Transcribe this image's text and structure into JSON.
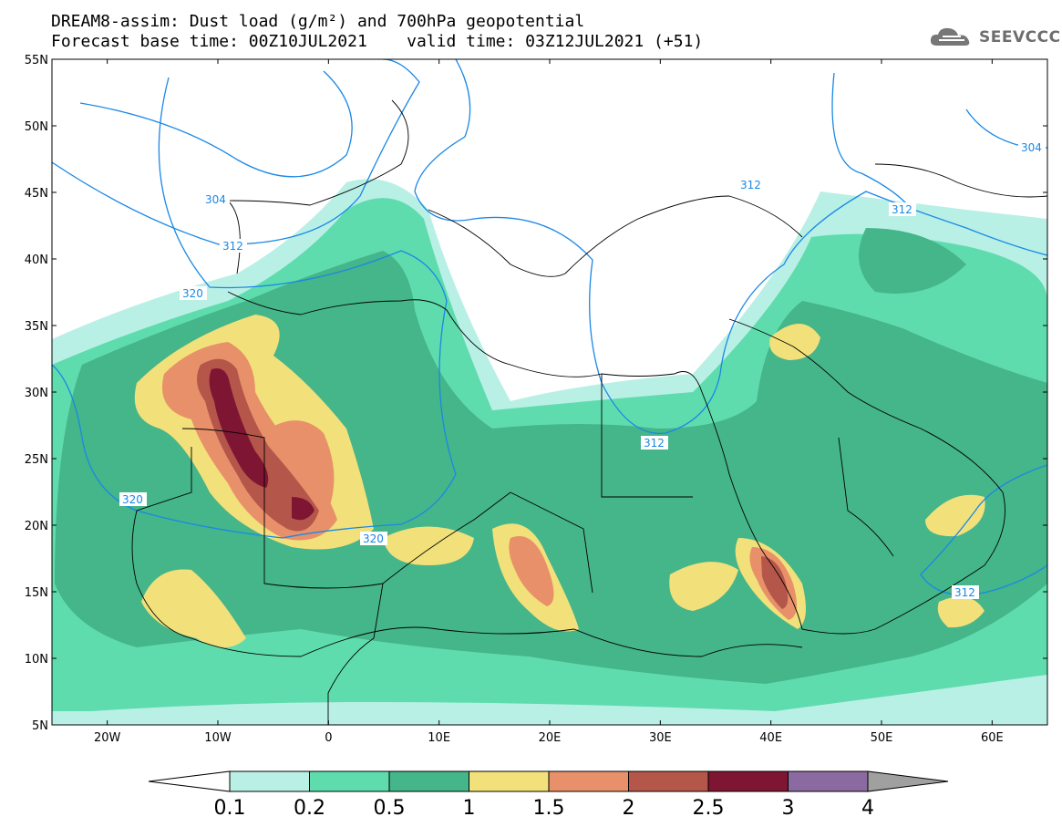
{
  "header": {
    "line1": "DREAM8-assim: Dust load (g/m²) and 700hPa geopotential",
    "line2": "Forecast base time: 00Z10JUL2021    valid time: 03Z12JUL2021 (+51)"
  },
  "logo": {
    "text": "SEEVCCC",
    "icon": "cloud-icon"
  },
  "axes": {
    "lon_ticks": [
      "20W",
      "10W",
      "0",
      "10E",
      "20E",
      "30E",
      "40E",
      "50E",
      "60E"
    ],
    "lat_ticks": [
      "55N",
      "50N",
      "45N",
      "40N",
      "35N",
      "30N",
      "25N",
      "20N",
      "15N",
      "10N",
      "5N"
    ],
    "lon_range": [
      -25,
      65
    ],
    "lat_range": [
      5,
      55
    ]
  },
  "contour_labels": [
    "304",
    "312",
    "320",
    "304",
    "312",
    "312",
    "312",
    "320",
    "320",
    "312"
  ],
  "colorbar": {
    "labels": [
      "0.1",
      "0.2",
      "0.5",
      "1",
      "1.5",
      "2",
      "2.5",
      "3",
      "4"
    ],
    "colors": [
      "#b9f0e6",
      "#5fdcad",
      "#45b58a",
      "#f2e07a",
      "#e8906a",
      "#b5564a",
      "#7e1633",
      "#8a6aa0"
    ],
    "over_color": "#a0a0a0",
    "under_color": "#ffffff"
  },
  "colors": {
    "contour_line": "#1a88e6",
    "border_line": "#000000"
  }
}
